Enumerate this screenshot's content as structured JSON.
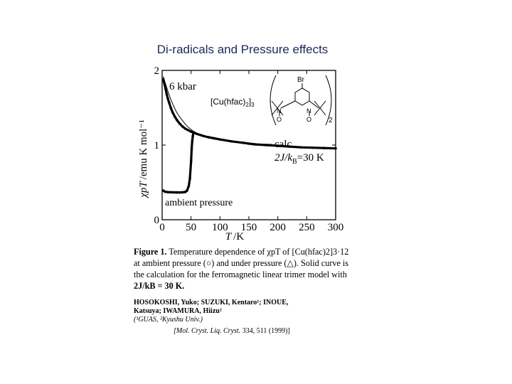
{
  "slide": {
    "title": "Di-radicals and Pressure effects"
  },
  "chart_data": {
    "type": "line",
    "xlabel_var": "T",
    "xlabel_unit": "/K",
    "ylabel_var": "χpT",
    "ylabel_unit": "/emu K mol⁻¹",
    "xlim": [
      0,
      300
    ],
    "ylim": [
      0,
      2
    ],
    "x_ticks": [
      0,
      50,
      100,
      150,
      200,
      250,
      300
    ],
    "y_ticks": [
      0,
      1,
      2
    ],
    "series": [
      {
        "name": "6 kbar",
        "x": [
          2,
          4,
          6,
          8,
          10,
          12,
          15,
          18,
          22,
          26,
          30,
          35,
          40,
          45,
          50,
          55,
          60,
          70,
          80,
          90,
          100,
          120,
          140,
          160,
          180,
          200,
          220,
          240,
          260,
          280,
          300
        ],
        "y": [
          1.88,
          1.82,
          1.75,
          1.68,
          1.62,
          1.57,
          1.5,
          1.44,
          1.38,
          1.33,
          1.29,
          1.25,
          1.22,
          1.2,
          1.18,
          1.165,
          1.15,
          1.125,
          1.105,
          1.09,
          1.075,
          1.05,
          1.03,
          1.01,
          1.0,
          0.99,
          0.98,
          0.97,
          0.965,
          0.96,
          0.955
        ]
      },
      {
        "name": "ambient pressure",
        "x": [
          2,
          5,
          10,
          15,
          20,
          25,
          30,
          35,
          40,
          43,
          46,
          48,
          50,
          51,
          52,
          53,
          54,
          55
        ],
        "y": [
          0.39,
          0.375,
          0.37,
          0.368,
          0.367,
          0.366,
          0.366,
          0.367,
          0.372,
          0.39,
          0.45,
          0.55,
          0.78,
          0.95,
          1.05,
          1.12,
          1.16,
          1.17
        ]
      },
      {
        "name": "calc",
        "x": [
          2,
          5,
          10,
          15,
          20,
          25,
          30,
          35,
          40,
          45,
          50,
          55,
          60,
          70,
          80,
          90,
          100,
          120,
          140,
          160,
          180,
          200,
          220,
          240,
          260,
          280,
          300
        ],
        "y": [
          1.92,
          1.84,
          1.72,
          1.61,
          1.52,
          1.44,
          1.38,
          1.33,
          1.28,
          1.24,
          1.21,
          1.18,
          1.16,
          1.13,
          1.1,
          1.085,
          1.07,
          1.045,
          1.025,
          1.01,
          0.995,
          0.985,
          0.975,
          0.968,
          0.962,
          0.957,
          0.952
        ]
      }
    ],
    "labels": {
      "high_pressure": "6 kbar",
      "ambient": "ambient pressure",
      "calc": "calc",
      "param_j": "2J/k",
      "param_sub": "B",
      "param_val": "=30 K",
      "compound": "[Cu(hfac)",
      "compound_sub": "2",
      "compound_tail": "]",
      "compound_sub2": "3",
      "bracket_sub": "2",
      "struct_br": "Br",
      "struct_n": "N",
      "struct_o": "O"
    }
  },
  "caption": {
    "fig": "Figure 1.",
    "line1": "Temperature dependence of χpT of [Cu(hfac)2]3·12",
    "line2": "at ambient pressure (○) and under pressure (△). Solid curve is",
    "line3": "the calculation for the ferromagnetic linear trimer model with",
    "line4": "2J/kB = 30 K."
  },
  "authors": {
    "line1": "HOSOKOSHI, Yuko; SUZUKI, Kentaro¹; INOUE,",
    "line2": "Katsuya; IWAMURA, Hiizu²",
    "affil": "(¹GUAS, ²Kyushu Univ.)"
  },
  "reference": {
    "journal": "[Mol. Cryst. Liq. Cryst.",
    "rest": " 334, 511 (1999)]"
  }
}
